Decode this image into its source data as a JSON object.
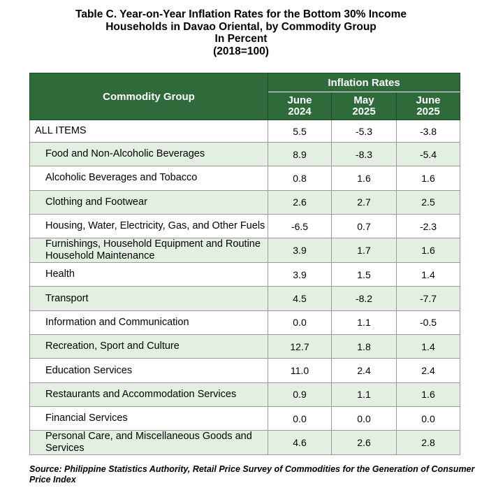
{
  "title": {
    "line1": "Table C. Year-on-Year Inflation Rates for the Bottom 30% Income",
    "line2": "Households in Davao Oriental, by Commodity Group",
    "line3": "In Percent",
    "line4": "(2018=100)"
  },
  "table": {
    "group_header": "Commodity Group",
    "rates_header": "Inflation Rates",
    "periods": [
      {
        "month": "June",
        "year": "2024"
      },
      {
        "month": "May",
        "year": "2025"
      },
      {
        "month": "June",
        "year": "2025"
      }
    ],
    "rows": [
      {
        "group": "ALL ITEMS",
        "jun2024": "5.5",
        "may2025": "-5.3",
        "jun2025": "-3.8"
      },
      {
        "group": "Food and Non-Alcoholic Beverages",
        "jun2024": "8.9",
        "may2025": "-8.3",
        "jun2025": "-5.4"
      },
      {
        "group": "Alcoholic Beverages and Tobacco",
        "jun2024": "0.8",
        "may2025": "1.6",
        "jun2025": "1.6"
      },
      {
        "group": "Clothing and Footwear",
        "jun2024": "2.6",
        "may2025": "2.7",
        "jun2025": "2.5"
      },
      {
        "group": "Housing, Water, Electricity, Gas, and Other Fuels",
        "jun2024": "-6.5",
        "may2025": "0.7",
        "jun2025": "-2.3"
      },
      {
        "group": "Furnishings, Household Equipment and Routine Household Maintenance",
        "jun2024": "3.9",
        "may2025": "1.7",
        "jun2025": "1.6"
      },
      {
        "group": "Health",
        "jun2024": "3.9",
        "may2025": "1.5",
        "jun2025": "1.4"
      },
      {
        "group": "Transport",
        "jun2024": "4.5",
        "may2025": "-8.2",
        "jun2025": "-7.7"
      },
      {
        "group": "Information and Communication",
        "jun2024": "0.0",
        "may2025": "1.1",
        "jun2025": "-0.5"
      },
      {
        "group": "Recreation, Sport and Culture",
        "jun2024": "12.7",
        "may2025": "1.8",
        "jun2025": "1.4"
      },
      {
        "group": "Education Services",
        "jun2024": "11.0",
        "may2025": "2.4",
        "jun2025": "2.4"
      },
      {
        "group": "Restaurants and Accommodation Services",
        "jun2024": "0.9",
        "may2025": "1.1",
        "jun2025": "1.6"
      },
      {
        "group": "Financial Services",
        "jun2024": "0.0",
        "may2025": "0.0",
        "jun2025": "0.0"
      },
      {
        "group": "Personal Care, and Miscellaneous Goods and Services",
        "jun2024": "4.6",
        "may2025": "2.6",
        "jun2025": "2.8"
      }
    ]
  },
  "source": "Source: Philippine Statistics Authority, Retail Price Survey of Commodities for the Generation of Consumer Price Index"
}
